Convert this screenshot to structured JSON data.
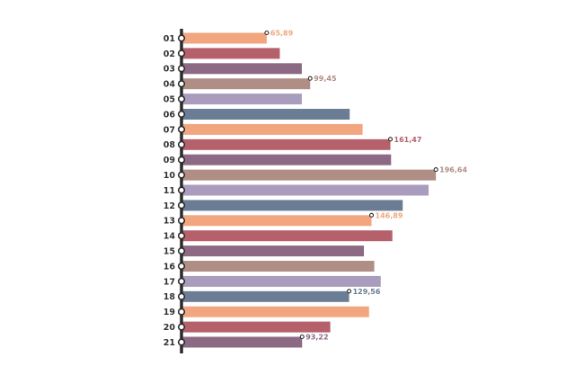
{
  "chart_data": {
    "type": "bar",
    "orientation": "horizontal",
    "title": "",
    "xlabel": "",
    "ylabel": "",
    "categories": [
      "01",
      "02",
      "03",
      "04",
      "05",
      "06",
      "07",
      "08",
      "09",
      "10",
      "11",
      "12",
      "13",
      "14",
      "15",
      "16",
      "17",
      "18",
      "19",
      "20",
      "21"
    ],
    "values": [
      65.89,
      76,
      93,
      99.45,
      93,
      130,
      140,
      161.47,
      162,
      196.64,
      191,
      171,
      146.89,
      163,
      141,
      149,
      154,
      129.56,
      145,
      115,
      93.22
    ],
    "value_labels": [
      "65,89",
      "",
      "",
      "99,45",
      "",
      "",
      "",
      "161,47",
      "",
      "196,64",
      "",
      "",
      "146,89",
      "",
      "",
      "",
      "",
      "129,56",
      "",
      "",
      "93,22"
    ],
    "xlim": [
      0,
      200
    ],
    "grid": false,
    "palette": [
      "#f2a680",
      "#b5606b",
      "#8c6a84",
      "#b08e86",
      "#a99cbc",
      "#6a7d94"
    ]
  }
}
